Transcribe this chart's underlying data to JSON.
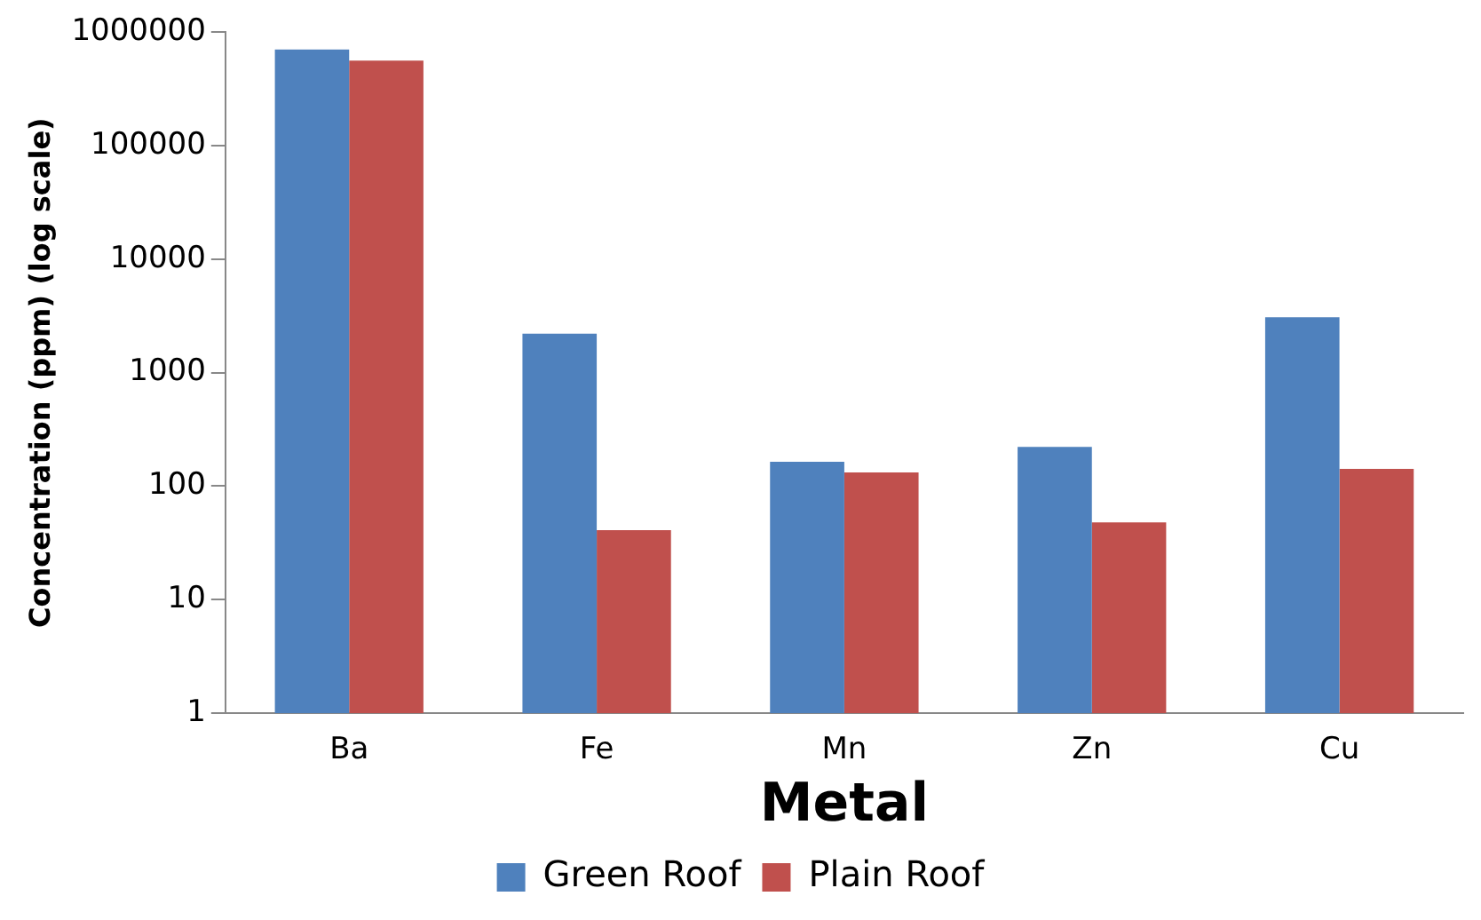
{
  "chart_data": {
    "type": "bar",
    "xlabel": "Metal",
    "ylabel": "Concentration (ppm) (log scale)",
    "categories": [
      "Ba",
      "Fe",
      "Mn",
      "Zn",
      "Cu"
    ],
    "series": [
      {
        "name": "Green Roof",
        "color": "#4f81bd",
        "values": [
          700000,
          2200,
          164,
          222,
          3080
        ]
      },
      {
        "name": "Plain Roof",
        "color": "#c0504d",
        "values": [
          560000,
          41,
          132,
          48,
          142
        ]
      }
    ],
    "log": "y",
    "ylim": [
      1,
      1000000
    ],
    "yticks": [
      1,
      10,
      100,
      1000,
      10000,
      100000,
      1000000
    ],
    "grid": false,
    "legend": "bottom"
  }
}
